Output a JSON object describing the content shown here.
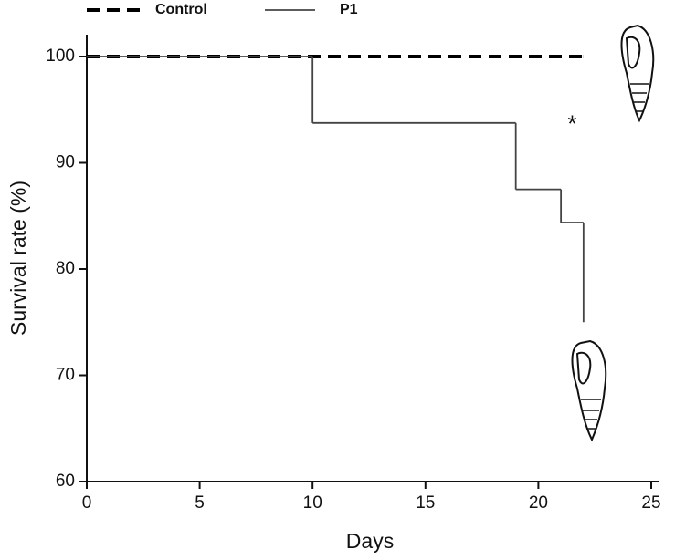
{
  "chart_data": {
    "type": "step",
    "x_label": "Days",
    "y_label": "Survival rate (%)",
    "xlim": [
      0,
      25
    ],
    "xticks": [
      0,
      5,
      10,
      15,
      20,
      25
    ],
    "ylim": [
      60,
      102
    ],
    "yticks": [
      60,
      70,
      80,
      90,
      100
    ],
    "grid": false,
    "series": [
      {
        "name": "Control",
        "color": "#000000",
        "dashed": true,
        "x": [
          0,
          22
        ],
        "values": [
          100,
          100
        ]
      },
      {
        "name": "P1",
        "color": "#444444",
        "dashed": false,
        "x": [
          0,
          10,
          19,
          21,
          22
        ],
        "values": [
          100,
          93.75,
          87.5,
          84.375,
          75
        ]
      }
    ],
    "annotations": [
      {
        "text": "*",
        "x": 21.5,
        "y": 93.5
      }
    ]
  }
}
